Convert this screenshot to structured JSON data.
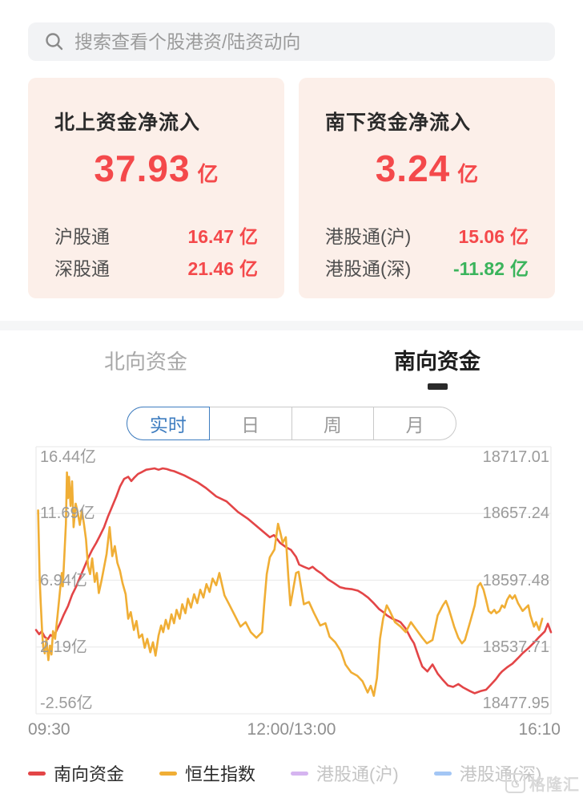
{
  "search": {
    "placeholder": "搜索查看个股港资/陆资动向"
  },
  "cards": [
    {
      "title": "北上资金净流入",
      "amount": "37.93",
      "unit": "亿",
      "amount_color": "#f4494b",
      "rows": [
        {
          "label": "沪股通",
          "value": "16.47",
          "unit": "亿",
          "color": "#f4494b"
        },
        {
          "label": "深股通",
          "value": "21.46",
          "unit": "亿",
          "color": "#f4494b"
        }
      ]
    },
    {
      "title": "南下资金净流入",
      "amount": "3.24",
      "unit": "亿",
      "amount_color": "#f4494b",
      "rows": [
        {
          "label": "港股通(沪)",
          "value": "15.06",
          "unit": "亿",
          "color": "#f4494b"
        },
        {
          "label": "港股通(深)",
          "value": "-11.82",
          "unit": "亿",
          "color": "#3bb45c"
        }
      ]
    }
  ],
  "flow_tabs": [
    {
      "label": "北向资金",
      "active": false
    },
    {
      "label": "南向资金",
      "active": true
    }
  ],
  "period_tabs": [
    {
      "label": "实时",
      "active": true
    },
    {
      "label": "日",
      "active": false
    },
    {
      "label": "周",
      "active": false
    },
    {
      "label": "月",
      "active": false
    }
  ],
  "colors": {
    "accent_red": "#f4494b",
    "accent_green": "#3bb45c",
    "tab_blue": "#3e7dc0",
    "line_red": "#e34547",
    "line_yellow": "#f0ae35",
    "legend_purple": "#d5b4f0",
    "legend_blue": "#a3c6f5",
    "gridline": "#ececec",
    "axis_text": "#9b9b9b"
  },
  "chart_data": {
    "type": "line",
    "legend_position": "bottom",
    "grid": true,
    "left_axis": {
      "labels": [
        "16.44亿",
        "11.69亿",
        "6.94亿",
        "2.19亿",
        "-2.56亿"
      ],
      "max": 16.44,
      "min": -2.56,
      "unit": "亿"
    },
    "right_axis": {
      "labels": [
        "18717.01",
        "18657.24",
        "18597.48",
        "18537.71",
        "18477.95"
      ],
      "max": 18717.01,
      "min": 18477.95
    },
    "x_axis": {
      "labels": [
        "09:30",
        "12:00/13:00",
        "16:10"
      ],
      "range": [
        "09:30",
        "16:10"
      ]
    },
    "series": [
      {
        "name": "南向资金",
        "color": "#e34547",
        "axis": "left",
        "visible": true,
        "points": [
          [
            0.0,
            3.4
          ],
          [
            0.006,
            3.1
          ],
          [
            0.011,
            3.3
          ],
          [
            0.017,
            2.9
          ],
          [
            0.023,
            2.75
          ],
          [
            0.028,
            3.05
          ],
          [
            0.034,
            2.9
          ],
          [
            0.039,
            3.3
          ],
          [
            0.047,
            3.9
          ],
          [
            0.054,
            4.5
          ],
          [
            0.062,
            5.1
          ],
          [
            0.07,
            5.9
          ],
          [
            0.078,
            6.5
          ],
          [
            0.086,
            7.2
          ],
          [
            0.093,
            7.8
          ],
          [
            0.101,
            8.5
          ],
          [
            0.109,
            9.1
          ],
          [
            0.117,
            9.6
          ],
          [
            0.124,
            10.1
          ],
          [
            0.132,
            10.7
          ],
          [
            0.14,
            11.5
          ],
          [
            0.148,
            12.2
          ],
          [
            0.156,
            12.9
          ],
          [
            0.163,
            13.6
          ],
          [
            0.171,
            14.15
          ],
          [
            0.179,
            14.3
          ],
          [
            0.185,
            14.0
          ],
          [
            0.191,
            14.25
          ],
          [
            0.198,
            14.5
          ],
          [
            0.206,
            14.65
          ],
          [
            0.214,
            14.8
          ],
          [
            0.222,
            14.85
          ],
          [
            0.23,
            14.9
          ],
          [
            0.238,
            14.8
          ],
          [
            0.246,
            14.9
          ],
          [
            0.254,
            14.85
          ],
          [
            0.262,
            14.75
          ],
          [
            0.268,
            14.7
          ],
          [
            0.288,
            14.4
          ],
          [
            0.314,
            13.9
          ],
          [
            0.33,
            13.5
          ],
          [
            0.35,
            12.9
          ],
          [
            0.37,
            12.55
          ],
          [
            0.392,
            11.8
          ],
          [
            0.412,
            11.3
          ],
          [
            0.433,
            10.65
          ],
          [
            0.454,
            10.0
          ],
          [
            0.462,
            10.15
          ],
          [
            0.474,
            9.6
          ],
          [
            0.485,
            9.3
          ],
          [
            0.495,
            9.1
          ],
          [
            0.505,
            8.6
          ],
          [
            0.511,
            8.05
          ],
          [
            0.52,
            7.9
          ],
          [
            0.53,
            7.75
          ],
          [
            0.537,
            7.9
          ],
          [
            0.545,
            7.65
          ],
          [
            0.555,
            7.4
          ],
          [
            0.567,
            7.0
          ],
          [
            0.578,
            6.75
          ],
          [
            0.59,
            6.45
          ],
          [
            0.601,
            6.35
          ],
          [
            0.614,
            6.3
          ],
          [
            0.625,
            6.2
          ],
          [
            0.634,
            6.0
          ],
          [
            0.645,
            5.7
          ],
          [
            0.656,
            5.3
          ],
          [
            0.666,
            4.9
          ],
          [
            0.677,
            4.6
          ],
          [
            0.681,
            4.45
          ],
          [
            0.692,
            4.2
          ],
          [
            0.703,
            4.05
          ],
          [
            0.708,
            3.95
          ],
          [
            0.718,
            3.5
          ],
          [
            0.728,
            2.8
          ],
          [
            0.734,
            2.45
          ],
          [
            0.743,
            1.5
          ],
          [
            0.75,
            0.8
          ],
          [
            0.76,
            0.45
          ],
          [
            0.77,
            0.95
          ],
          [
            0.78,
            0.3
          ],
          [
            0.79,
            -0.15
          ],
          [
            0.8,
            -0.55
          ],
          [
            0.81,
            -0.65
          ],
          [
            0.82,
            -0.45
          ],
          [
            0.83,
            -0.7
          ],
          [
            0.843,
            -0.95
          ],
          [
            0.852,
            -1.1
          ],
          [
            0.863,
            -0.95
          ],
          [
            0.874,
            -0.85
          ],
          [
            0.883,
            -0.5
          ],
          [
            0.893,
            -0.1
          ],
          [
            0.9,
            0.25
          ],
          [
            0.905,
            0.45
          ],
          [
            0.915,
            0.75
          ],
          [
            0.925,
            1.0
          ],
          [
            0.936,
            1.4
          ],
          [
            0.945,
            1.75
          ],
          [
            0.956,
            2.1
          ],
          [
            0.967,
            2.5
          ],
          [
            0.977,
            2.9
          ],
          [
            0.988,
            3.3
          ],
          [
            0.994,
            3.85
          ],
          [
            1.0,
            3.24
          ]
        ]
      },
      {
        "name": "恒生指数",
        "color": "#f0ae35",
        "axis": "right",
        "visible": true,
        "points": [
          [
            0.004,
            18660
          ],
          [
            0.007,
            18600
          ],
          [
            0.009,
            18578
          ],
          [
            0.012,
            18550
          ],
          [
            0.014,
            18538
          ],
          [
            0.017,
            18532
          ],
          [
            0.02,
            18545
          ],
          [
            0.024,
            18526
          ],
          [
            0.027,
            18539
          ],
          [
            0.03,
            18531
          ],
          [
            0.033,
            18552
          ],
          [
            0.037,
            18545
          ],
          [
            0.042,
            18567
          ],
          [
            0.047,
            18590
          ],
          [
            0.05,
            18604
          ],
          [
            0.052,
            18592
          ],
          [
            0.055,
            18620
          ],
          [
            0.058,
            18648
          ],
          [
            0.06,
            18694
          ],
          [
            0.062,
            18671
          ],
          [
            0.064,
            18690
          ],
          [
            0.067,
            18664
          ],
          [
            0.07,
            18686
          ],
          [
            0.073,
            18645
          ],
          [
            0.077,
            18666
          ],
          [
            0.081,
            18658
          ],
          [
            0.085,
            18647
          ],
          [
            0.089,
            18660
          ],
          [
            0.093,
            18648
          ],
          [
            0.097,
            18634
          ],
          [
            0.101,
            18610
          ],
          [
            0.105,
            18603
          ],
          [
            0.109,
            18617
          ],
          [
            0.114,
            18596
          ],
          [
            0.118,
            18604
          ],
          [
            0.122,
            18586
          ],
          [
            0.127,
            18597
          ],
          [
            0.132,
            18609
          ],
          [
            0.137,
            18621
          ],
          [
            0.143,
            18645
          ],
          [
            0.148,
            18619
          ],
          [
            0.153,
            18628
          ],
          [
            0.158,
            18613
          ],
          [
            0.163,
            18606
          ],
          [
            0.168,
            18595
          ],
          [
            0.174,
            18585
          ],
          [
            0.179,
            18563
          ],
          [
            0.184,
            18569
          ],
          [
            0.19,
            18553
          ],
          [
            0.195,
            18561
          ],
          [
            0.2,
            18546
          ],
          [
            0.206,
            18549
          ],
          [
            0.211,
            18537
          ],
          [
            0.216,
            18545
          ],
          [
            0.222,
            18533
          ],
          [
            0.227,
            18542
          ],
          [
            0.232,
            18530
          ],
          [
            0.238,
            18548
          ],
          [
            0.243,
            18557
          ],
          [
            0.247,
            18551
          ],
          [
            0.252,
            18562
          ],
          [
            0.257,
            18554
          ],
          [
            0.263,
            18567
          ],
          [
            0.268,
            18559
          ],
          [
            0.273,
            18571
          ],
          [
            0.279,
            18563
          ],
          [
            0.284,
            18576
          ],
          [
            0.29,
            18568
          ],
          [
            0.295,
            18581
          ],
          [
            0.301,
            18573
          ],
          [
            0.307,
            18585
          ],
          [
            0.313,
            18577
          ],
          [
            0.319,
            18589
          ],
          [
            0.325,
            18582
          ],
          [
            0.331,
            18594
          ],
          [
            0.337,
            18587
          ],
          [
            0.343,
            18599
          ],
          [
            0.35,
            18593
          ],
          [
            0.356,
            18604
          ],
          [
            0.366,
            18584
          ],
          [
            0.376,
            18575
          ],
          [
            0.386,
            18566
          ],
          [
            0.397,
            18556
          ],
          [
            0.407,
            18560
          ],
          [
            0.417,
            18551
          ],
          [
            0.428,
            18546
          ],
          [
            0.439,
            18551
          ],
          [
            0.443,
            18575
          ],
          [
            0.448,
            18603
          ],
          [
            0.454,
            18618
          ],
          [
            0.463,
            18625
          ],
          [
            0.47,
            18648
          ],
          [
            0.474,
            18641
          ],
          [
            0.479,
            18631
          ],
          [
            0.485,
            18636
          ],
          [
            0.49,
            18600
          ],
          [
            0.494,
            18575
          ],
          [
            0.505,
            18604
          ],
          [
            0.51,
            18605
          ],
          [
            0.52,
            18576
          ],
          [
            0.53,
            18578
          ],
          [
            0.54,
            18568
          ],
          [
            0.552,
            18557
          ],
          [
            0.562,
            18559
          ],
          [
            0.57,
            18547
          ],
          [
            0.581,
            18542
          ],
          [
            0.592,
            18534
          ],
          [
            0.601,
            18522
          ],
          [
            0.612,
            18515
          ],
          [
            0.624,
            18512
          ],
          [
            0.634,
            18507
          ],
          [
            0.644,
            18497
          ],
          [
            0.65,
            18503
          ],
          [
            0.656,
            18494
          ],
          [
            0.662,
            18510
          ],
          [
            0.668,
            18545
          ],
          [
            0.674,
            18563
          ],
          [
            0.681,
            18575
          ],
          [
            0.687,
            18570
          ],
          [
            0.697,
            18560
          ],
          [
            0.708,
            18556
          ],
          [
            0.718,
            18551
          ],
          [
            0.728,
            18560
          ],
          [
            0.739,
            18553
          ],
          [
            0.75,
            18546
          ],
          [
            0.759,
            18541
          ],
          [
            0.77,
            18544
          ],
          [
            0.78,
            18566
          ],
          [
            0.79,
            18575
          ],
          [
            0.796,
            18579
          ],
          [
            0.801,
            18573
          ],
          [
            0.812,
            18556
          ],
          [
            0.82,
            18546
          ],
          [
            0.827,
            18541
          ],
          [
            0.833,
            18544
          ],
          [
            0.843,
            18560
          ],
          [
            0.852,
            18575
          ],
          [
            0.858,
            18592
          ],
          [
            0.863,
            18595
          ],
          [
            0.869,
            18589
          ],
          [
            0.874,
            18580
          ],
          [
            0.879,
            18570
          ],
          [
            0.884,
            18568
          ],
          [
            0.89,
            18571
          ],
          [
            0.894,
            18568
          ],
          [
            0.9,
            18570
          ],
          [
            0.905,
            18575
          ],
          [
            0.91,
            18573
          ],
          [
            0.915,
            18580
          ],
          [
            0.92,
            18584
          ],
          [
            0.925,
            18581
          ],
          [
            0.93,
            18584
          ],
          [
            0.936,
            18577
          ],
          [
            0.945,
            18570
          ],
          [
            0.956,
            18575
          ],
          [
            0.96,
            18566
          ],
          [
            0.967,
            18556
          ],
          [
            0.971,
            18560
          ],
          [
            0.977,
            18553
          ],
          [
            0.983,
            18563
          ]
        ]
      },
      {
        "name": "港股通(沪)",
        "color": "#d5b4f0",
        "axis": "left",
        "visible": false,
        "points": []
      },
      {
        "name": "港股通(深)",
        "color": "#a3c6f5",
        "axis": "left",
        "visible": false,
        "points": []
      }
    ]
  },
  "watermark": {
    "icon_letter": "G",
    "text": "格隆汇"
  }
}
